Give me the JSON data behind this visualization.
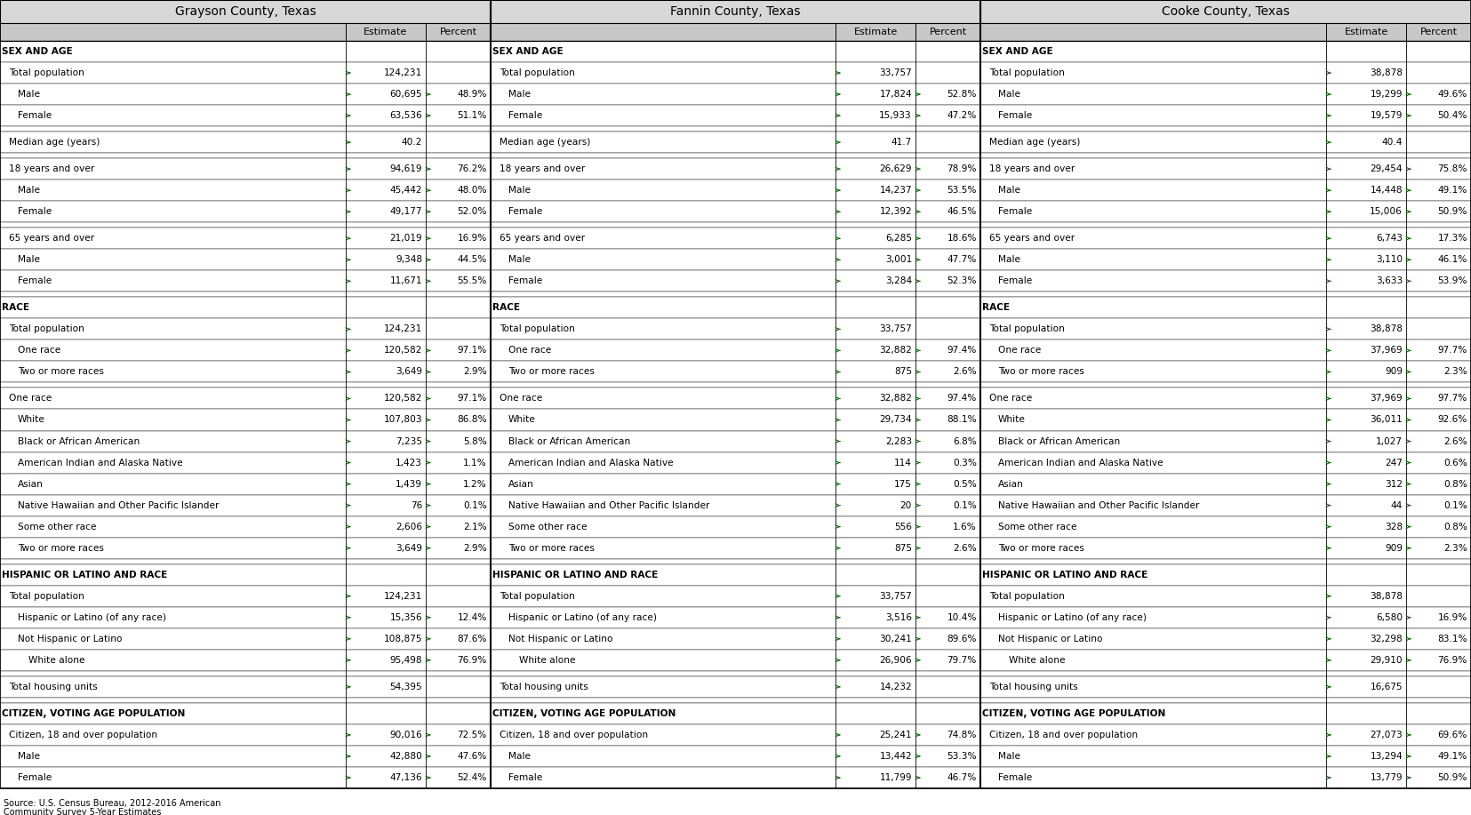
{
  "counties": [
    "Grayson County, Texas",
    "Fannin County, Texas",
    "Cooke County, Texas"
  ],
  "rows": [
    {
      "label": "SEX AND AGE",
      "indent": 0,
      "bold": true,
      "section_header": true,
      "g_est": "",
      "g_pct": "",
      "f_est": "",
      "f_pct": "",
      "c_est": "",
      "c_pct": ""
    },
    {
      "label": "Total population",
      "indent": 1,
      "bold": false,
      "g_est": "124,231",
      "g_pct": "",
      "f_est": "33,757",
      "f_pct": "",
      "c_est": "38,878",
      "c_pct": ""
    },
    {
      "label": "Male",
      "indent": 2,
      "bold": false,
      "g_est": "60,695",
      "g_pct": "48.9%",
      "f_est": "17,824",
      "f_pct": "52.8%",
      "c_est": "19,299",
      "c_pct": "49.6%"
    },
    {
      "label": "Female",
      "indent": 2,
      "bold": false,
      "g_est": "63,536",
      "g_pct": "51.1%",
      "f_est": "15,933",
      "f_pct": "47.2%",
      "c_est": "19,579",
      "c_pct": "50.4%"
    },
    {
      "label": "",
      "spacer": true,
      "g_est": "",
      "g_pct": "",
      "f_est": "",
      "f_pct": "",
      "c_est": "",
      "c_pct": ""
    },
    {
      "label": "Median age (years)",
      "indent": 1,
      "bold": false,
      "g_est": "40.2",
      "g_pct": "",
      "f_est": "41.7",
      "f_pct": "",
      "c_est": "40.4",
      "c_pct": ""
    },
    {
      "label": "",
      "spacer": true,
      "g_est": "",
      "g_pct": "",
      "f_est": "",
      "f_pct": "",
      "c_est": "",
      "c_pct": ""
    },
    {
      "label": "18 years and over",
      "indent": 1,
      "bold": false,
      "g_est": "94,619",
      "g_pct": "76.2%",
      "f_est": "26,629",
      "f_pct": "78.9%",
      "c_est": "29,454",
      "c_pct": "75.8%"
    },
    {
      "label": "Male",
      "indent": 2,
      "bold": false,
      "g_est": "45,442",
      "g_pct": "48.0%",
      "f_est": "14,237",
      "f_pct": "53.5%",
      "c_est": "14,448",
      "c_pct": "49.1%"
    },
    {
      "label": "Female",
      "indent": 2,
      "bold": false,
      "g_est": "49,177",
      "g_pct": "52.0%",
      "f_est": "12,392",
      "f_pct": "46.5%",
      "c_est": "15,006",
      "c_pct": "50.9%"
    },
    {
      "label": "",
      "spacer": true,
      "g_est": "",
      "g_pct": "",
      "f_est": "",
      "f_pct": "",
      "c_est": "",
      "c_pct": ""
    },
    {
      "label": "65 years and over",
      "indent": 1,
      "bold": false,
      "g_est": "21,019",
      "g_pct": "16.9%",
      "f_est": "6,285",
      "f_pct": "18.6%",
      "c_est": "6,743",
      "c_pct": "17.3%"
    },
    {
      "label": "Male",
      "indent": 2,
      "bold": false,
      "g_est": "9,348",
      "g_pct": "44.5%",
      "f_est": "3,001",
      "f_pct": "47.7%",
      "c_est": "3,110",
      "c_pct": "46.1%"
    },
    {
      "label": "Female",
      "indent": 2,
      "bold": false,
      "g_est": "11,671",
      "g_pct": "55.5%",
      "f_est": "3,284",
      "f_pct": "52.3%",
      "c_est": "3,633",
      "c_pct": "53.9%"
    },
    {
      "label": "",
      "spacer": true,
      "g_est": "",
      "g_pct": "",
      "f_est": "",
      "f_pct": "",
      "c_est": "",
      "c_pct": ""
    },
    {
      "label": "RACE",
      "indent": 0,
      "bold": true,
      "section_header": true,
      "g_est": "",
      "g_pct": "",
      "f_est": "",
      "f_pct": "",
      "c_est": "",
      "c_pct": ""
    },
    {
      "label": "Total population",
      "indent": 1,
      "bold": false,
      "g_est": "124,231",
      "g_pct": "",
      "f_est": "33,757",
      "f_pct": "",
      "c_est": "38,878",
      "c_pct": ""
    },
    {
      "label": "One race",
      "indent": 2,
      "bold": false,
      "g_est": "120,582",
      "g_pct": "97.1%",
      "f_est": "32,882",
      "f_pct": "97.4%",
      "c_est": "37,969",
      "c_pct": "97.7%"
    },
    {
      "label": "Two or more races",
      "indent": 2,
      "bold": false,
      "g_est": "3,649",
      "g_pct": "2.9%",
      "f_est": "875",
      "f_pct": "2.6%",
      "c_est": "909",
      "c_pct": "2.3%"
    },
    {
      "label": "",
      "spacer": true,
      "g_est": "",
      "g_pct": "",
      "f_est": "",
      "f_pct": "",
      "c_est": "",
      "c_pct": ""
    },
    {
      "label": "One race",
      "indent": 1,
      "bold": false,
      "g_est": "120,582",
      "g_pct": "97.1%",
      "f_est": "32,882",
      "f_pct": "97.4%",
      "c_est": "37,969",
      "c_pct": "97.7%"
    },
    {
      "label": "White",
      "indent": 2,
      "bold": false,
      "g_est": "107,803",
      "g_pct": "86.8%",
      "f_est": "29,734",
      "f_pct": "88.1%",
      "c_est": "36,011",
      "c_pct": "92.6%"
    },
    {
      "label": "Black or African American",
      "indent": 2,
      "bold": false,
      "g_est": "7,235",
      "g_pct": "5.8%",
      "f_est": "2,283",
      "f_pct": "6.8%",
      "c_est": "1,027",
      "c_pct": "2.6%"
    },
    {
      "label": "American Indian and Alaska Native",
      "indent": 2,
      "bold": false,
      "g_est": "1,423",
      "g_pct": "1.1%",
      "f_est": "114",
      "f_pct": "0.3%",
      "c_est": "247",
      "c_pct": "0.6%"
    },
    {
      "label": "Asian",
      "indent": 2,
      "bold": false,
      "g_est": "1,439",
      "g_pct": "1.2%",
      "f_est": "175",
      "f_pct": "0.5%",
      "c_est": "312",
      "c_pct": "0.8%"
    },
    {
      "label": "Native Hawaiian and Other Pacific Islander",
      "indent": 2,
      "bold": false,
      "g_est": "76",
      "g_pct": "0.1%",
      "f_est": "20",
      "f_pct": "0.1%",
      "c_est": "44",
      "c_pct": "0.1%"
    },
    {
      "label": "Some other race",
      "indent": 2,
      "bold": false,
      "g_est": "2,606",
      "g_pct": "2.1%",
      "f_est": "556",
      "f_pct": "1.6%",
      "c_est": "328",
      "c_pct": "0.8%"
    },
    {
      "label": "Two or more races",
      "indent": 2,
      "bold": false,
      "g_est": "3,649",
      "g_pct": "2.9%",
      "f_est": "875",
      "f_pct": "2.6%",
      "c_est": "909",
      "c_pct": "2.3%"
    },
    {
      "label": "",
      "spacer": true,
      "g_est": "",
      "g_pct": "",
      "f_est": "",
      "f_pct": "",
      "c_est": "",
      "c_pct": ""
    },
    {
      "label": "HISPANIC OR LATINO AND RACE",
      "indent": 0,
      "bold": true,
      "section_header": true,
      "g_est": "",
      "g_pct": "",
      "f_est": "",
      "f_pct": "",
      "c_est": "",
      "c_pct": ""
    },
    {
      "label": "Total population",
      "indent": 1,
      "bold": false,
      "g_est": "124,231",
      "g_pct": "",
      "f_est": "33,757",
      "f_pct": "",
      "c_est": "38,878",
      "c_pct": ""
    },
    {
      "label": "Hispanic or Latino (of any race)",
      "indent": 2,
      "bold": false,
      "g_est": "15,356",
      "g_pct": "12.4%",
      "f_est": "3,516",
      "f_pct": "10.4%",
      "c_est": "6,580",
      "c_pct": "16.9%"
    },
    {
      "label": "Not Hispanic or Latino",
      "indent": 2,
      "bold": false,
      "g_est": "108,875",
      "g_pct": "87.6%",
      "f_est": "30,241",
      "f_pct": "89.6%",
      "c_est": "32,298",
      "c_pct": "83.1%"
    },
    {
      "label": "White alone",
      "indent": 3,
      "bold": false,
      "g_est": "95,498",
      "g_pct": "76.9%",
      "f_est": "26,906",
      "f_pct": "79.7%",
      "c_est": "29,910",
      "c_pct": "76.9%"
    },
    {
      "label": "",
      "spacer": true,
      "g_est": "",
      "g_pct": "",
      "f_est": "",
      "f_pct": "",
      "c_est": "",
      "c_pct": ""
    },
    {
      "label": "Total housing units",
      "indent": 1,
      "bold": false,
      "g_est": "54,395",
      "g_pct": "",
      "f_est": "14,232",
      "f_pct": "",
      "c_est": "16,675",
      "c_pct": ""
    },
    {
      "label": "",
      "spacer": true,
      "g_est": "",
      "g_pct": "",
      "f_est": "",
      "f_pct": "",
      "c_est": "",
      "c_pct": ""
    },
    {
      "label": "CITIZEN, VOTING AGE POPULATION",
      "indent": 0,
      "bold": true,
      "section_header": true,
      "g_est": "",
      "g_pct": "",
      "f_est": "",
      "f_pct": "",
      "c_est": "",
      "c_pct": ""
    },
    {
      "label": "Citizen, 18 and over population",
      "indent": 1,
      "bold": false,
      "g_est": "90,016",
      "g_pct": "72.5%",
      "f_est": "25,241",
      "f_pct": "74.8%",
      "c_est": "27,073",
      "c_pct": "69.6%"
    },
    {
      "label": "Male",
      "indent": 2,
      "bold": false,
      "g_est": "42,880",
      "g_pct": "47.6%",
      "f_est": "13,442",
      "f_pct": "53.3%",
      "c_est": "13,294",
      "c_pct": "49.1%"
    },
    {
      "label": "Female",
      "indent": 2,
      "bold": false,
      "g_est": "47,136",
      "g_pct": "52.4%",
      "f_est": "11,799",
      "f_pct": "46.7%",
      "c_est": "13,779",
      "c_pct": "50.9%"
    }
  ],
  "footnote_line1": "Source: U.S. Census Bureau, 2012-2016 American",
  "footnote_line2": "Community Survey 5-Year Estimates",
  "bg_white": "#ffffff",
  "bg_header": "#c8c8c8",
  "bg_county": "#d8d8d8",
  "border_color": "#000000",
  "green_arrow": "#007000",
  "text_color": "#000000"
}
